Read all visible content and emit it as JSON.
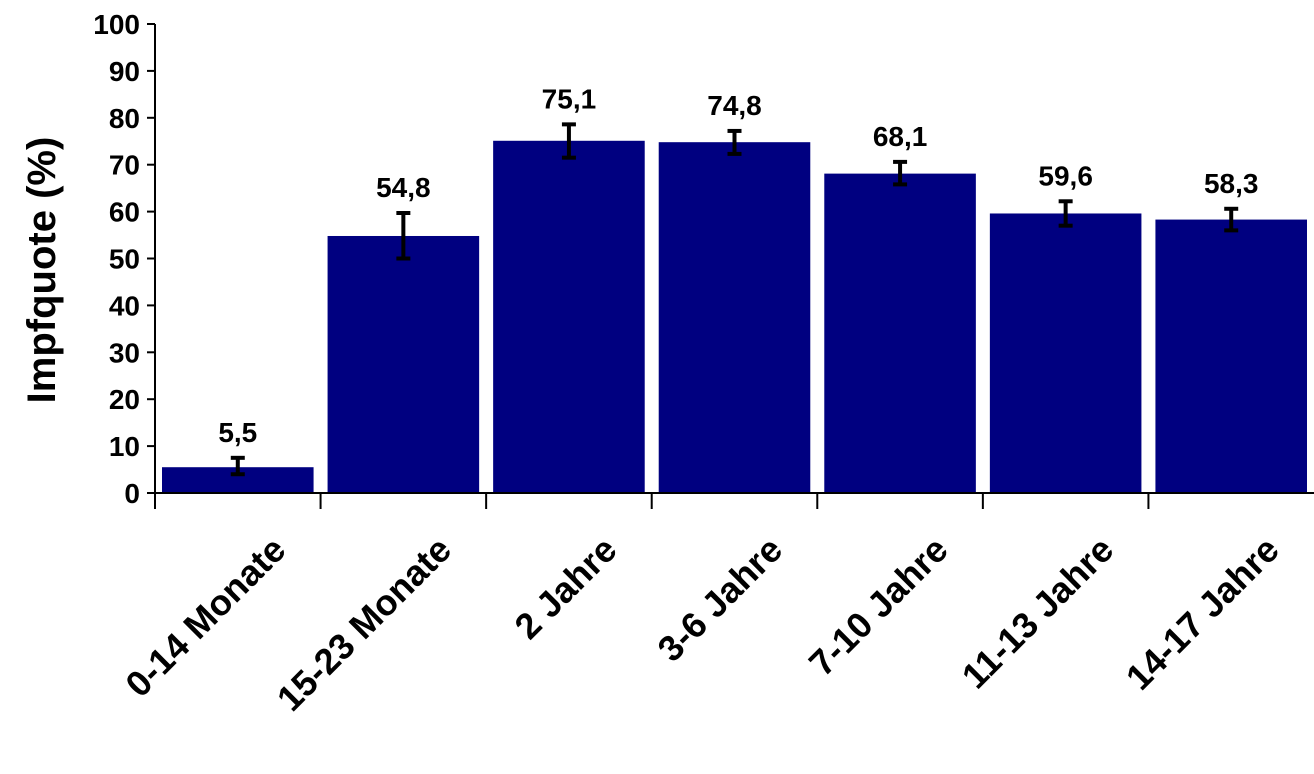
{
  "chart_data": {
    "type": "bar",
    "ylabel": "Impfquote (%)",
    "xlabel": "",
    "ylim": [
      0,
      100
    ],
    "yticks": [
      0,
      10,
      20,
      30,
      40,
      50,
      60,
      70,
      80,
      90,
      100
    ],
    "grid": false,
    "legend": "none",
    "categories": [
      "0-14 Monate",
      "15-23 Monate",
      "2 Jahre",
      "3-6 Jahre",
      "7-10 Jahre",
      "11-13 Jahre",
      "14-17 Jahre"
    ],
    "values": [
      5.5,
      54.8,
      75.1,
      74.8,
      68.1,
      59.6,
      58.3
    ],
    "value_labels": [
      "5,5",
      "54,8",
      "75,1",
      "74,8",
      "68,1",
      "59,6",
      "58,3"
    ],
    "error_low": [
      4.0,
      50.0,
      71.5,
      72.3,
      65.8,
      57.0,
      56.0
    ],
    "error_high": [
      7.5,
      59.7,
      78.6,
      77.2,
      70.6,
      62.2,
      60.6
    ],
    "bar_color": "#000080"
  }
}
